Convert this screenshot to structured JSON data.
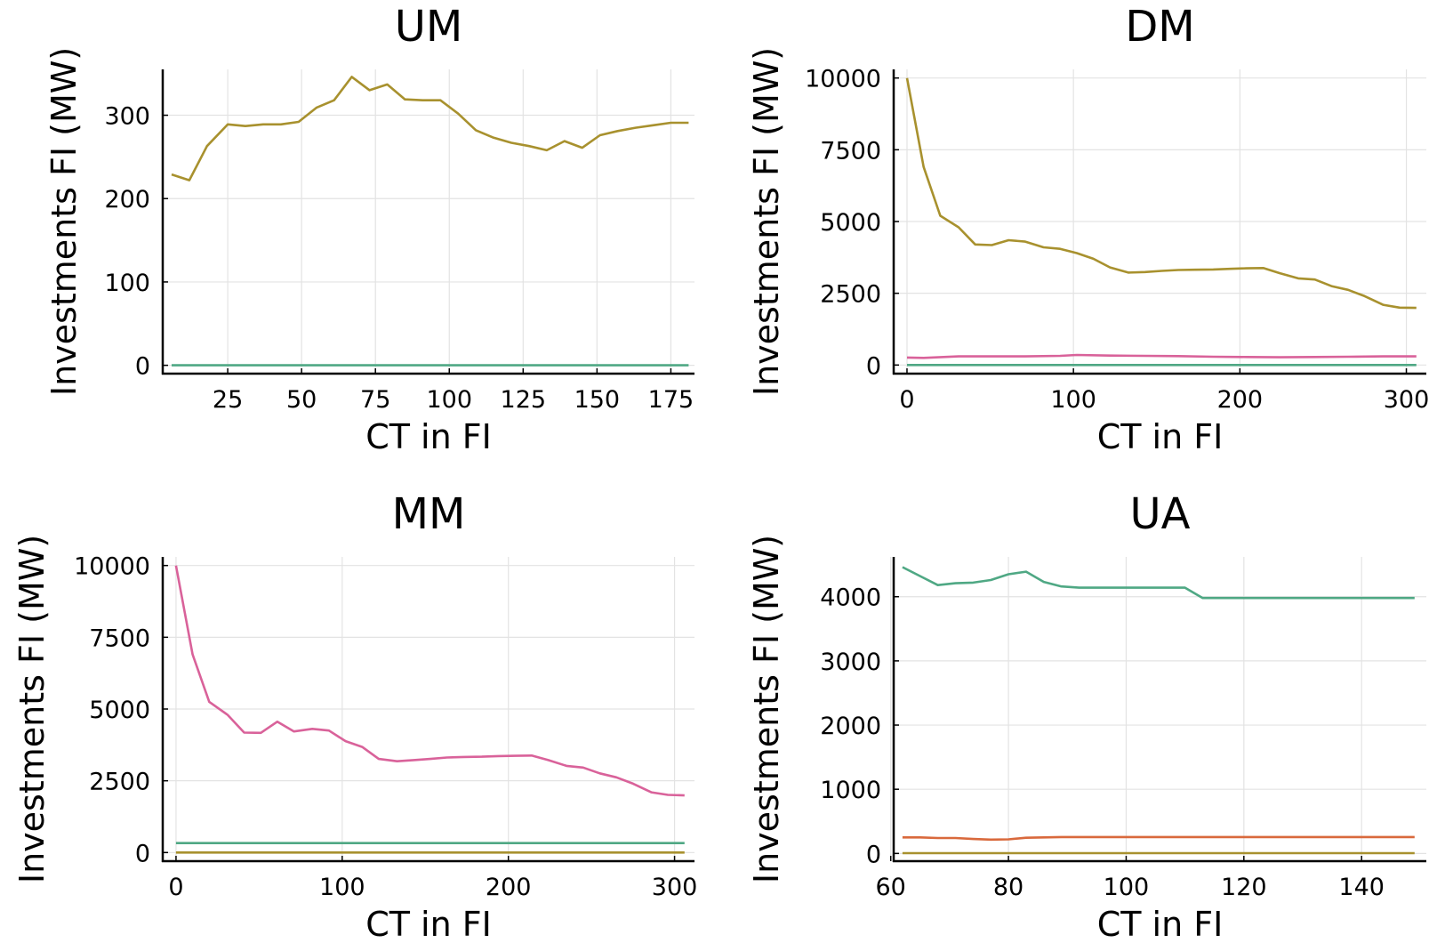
{
  "colors": {
    "olive": "#a8912e",
    "pink": "#d9629a",
    "green": "#4fa884",
    "orange": "#d9693c"
  },
  "chart_data": [
    {
      "type": "line",
      "title": "UM",
      "xlabel": "CT in FI",
      "ylabel": "Investments FI (MW)",
      "xlim": [
        3,
        183
      ],
      "ylim": [
        -10,
        355
      ],
      "xticks": [
        25,
        50,
        75,
        100,
        125,
        150,
        175
      ],
      "yticks": [
        0,
        100,
        200,
        300
      ],
      "grid": true,
      "series": [
        {
          "color": "olive",
          "x": [
            6,
            12,
            18,
            25,
            31,
            37,
            43,
            49,
            55,
            61,
            67,
            73,
            79,
            85,
            91,
            97,
            103,
            109,
            115,
            121,
            127,
            133,
            139,
            145,
            151,
            157,
            163,
            169,
            175,
            181
          ],
          "y": [
            229,
            222,
            263,
            289,
            287,
            289,
            289,
            292,
            309,
            318,
            346,
            330,
            337,
            319,
            318,
            318,
            302,
            282,
            273,
            267,
            263,
            258,
            269,
            261,
            276,
            281,
            285,
            288,
            291,
            291
          ]
        },
        {
          "color": "green",
          "x": [
            6,
            181
          ],
          "y": [
            0,
            0
          ]
        }
      ]
    },
    {
      "type": "line",
      "title": "DM",
      "xlabel": "CT in FI",
      "ylabel": "Investments FI (MW)",
      "xlim": [
        -8,
        312
      ],
      "ylim": [
        -300,
        10300
      ],
      "xticks": [
        0,
        100,
        200,
        300
      ],
      "yticks": [
        0,
        2500,
        5000,
        7500,
        10000
      ],
      "grid": true,
      "series": [
        {
          "color": "olive",
          "x": [
            0,
            10,
            20,
            31,
            41,
            51,
            61,
            71,
            82,
            92,
            102,
            112,
            122,
            133,
            143,
            153,
            163,
            173,
            184,
            194,
            204,
            214,
            224,
            235,
            245,
            255,
            265,
            275,
            286,
            296,
            306
          ],
          "y": [
            10000,
            6900,
            5200,
            4800,
            4200,
            4180,
            4350,
            4300,
            4100,
            4050,
            3900,
            3700,
            3400,
            3220,
            3240,
            3280,
            3310,
            3320,
            3330,
            3350,
            3370,
            3380,
            3200,
            3020,
            2980,
            2750,
            2620,
            2400,
            2100,
            2000,
            1990
          ]
        },
        {
          "color": "pink",
          "x": [
            0,
            10,
            31,
            51,
            71,
            92,
            102,
            122,
            143,
            163,
            184,
            204,
            224,
            245,
            265,
            286,
            306
          ],
          "y": [
            260,
            250,
            300,
            300,
            300,
            320,
            350,
            330,
            320,
            310,
            290,
            280,
            270,
            280,
            290,
            300,
            300
          ]
        },
        {
          "color": "green",
          "x": [
            0,
            306
          ],
          "y": [
            0,
            0
          ]
        }
      ]
    },
    {
      "type": "line",
      "title": "MM",
      "xlabel": "CT in FI",
      "ylabel": "Investments FI (MW)",
      "xlim": [
        -8,
        312
      ],
      "ylim": [
        -300,
        10300
      ],
      "xticks": [
        0,
        100,
        200,
        300
      ],
      "yticks": [
        0,
        2500,
        5000,
        7500,
        10000
      ],
      "grid": true,
      "series": [
        {
          "color": "pink",
          "x": [
            0,
            10,
            20,
            31,
            41,
            51,
            61,
            71,
            82,
            92,
            102,
            112,
            122,
            133,
            143,
            153,
            163,
            173,
            184,
            194,
            204,
            214,
            224,
            235,
            245,
            255,
            265,
            275,
            286,
            296,
            306
          ],
          "y": [
            10000,
            6900,
            5250,
            4800,
            4180,
            4170,
            4560,
            4220,
            4310,
            4250,
            3880,
            3680,
            3260,
            3180,
            3220,
            3260,
            3310,
            3330,
            3340,
            3360,
            3370,
            3380,
            3220,
            3020,
            2960,
            2760,
            2620,
            2400,
            2100,
            2010,
            1990
          ]
        },
        {
          "color": "green",
          "x": [
            0,
            306
          ],
          "y": [
            330,
            330
          ]
        },
        {
          "color": "olive",
          "x": [
            0,
            306
          ],
          "y": [
            0,
            0
          ]
        }
      ]
    },
    {
      "type": "line",
      "title": "UA",
      "xlabel": "CT in FI",
      "ylabel": "Investments FI (MW)",
      "xlim": [
        60.5,
        151
      ],
      "ylim": [
        -120,
        4620
      ],
      "xticks": [
        60,
        80,
        100,
        120,
        140
      ],
      "yticks": [
        0,
        1000,
        2000,
        3000,
        4000
      ],
      "grid": true,
      "series": [
        {
          "color": "green",
          "x": [
            62,
            65,
            68,
            71,
            74,
            77,
            80,
            83,
            86,
            89,
            92,
            95,
            98,
            101,
            104,
            107,
            110,
            113,
            116,
            119,
            122,
            125,
            128,
            131,
            134,
            137,
            140,
            143,
            146,
            149
          ],
          "y": [
            4460,
            4320,
            4180,
            4210,
            4220,
            4260,
            4350,
            4390,
            4230,
            4160,
            4140,
            4140,
            4140,
            4140,
            4140,
            4140,
            4140,
            3980,
            3980,
            3980,
            3980,
            3980,
            3980,
            3980,
            3980,
            3980,
            3980,
            3980,
            3980,
            3980
          ]
        },
        {
          "color": "orange",
          "x": [
            62,
            65,
            68,
            71,
            74,
            77,
            80,
            83,
            86,
            89,
            92,
            149
          ],
          "y": [
            250,
            250,
            240,
            240,
            225,
            215,
            220,
            245,
            250,
            255,
            255,
            255
          ]
        },
        {
          "color": "olive",
          "x": [
            62,
            149
          ],
          "y": [
            5,
            5
          ]
        }
      ]
    }
  ]
}
